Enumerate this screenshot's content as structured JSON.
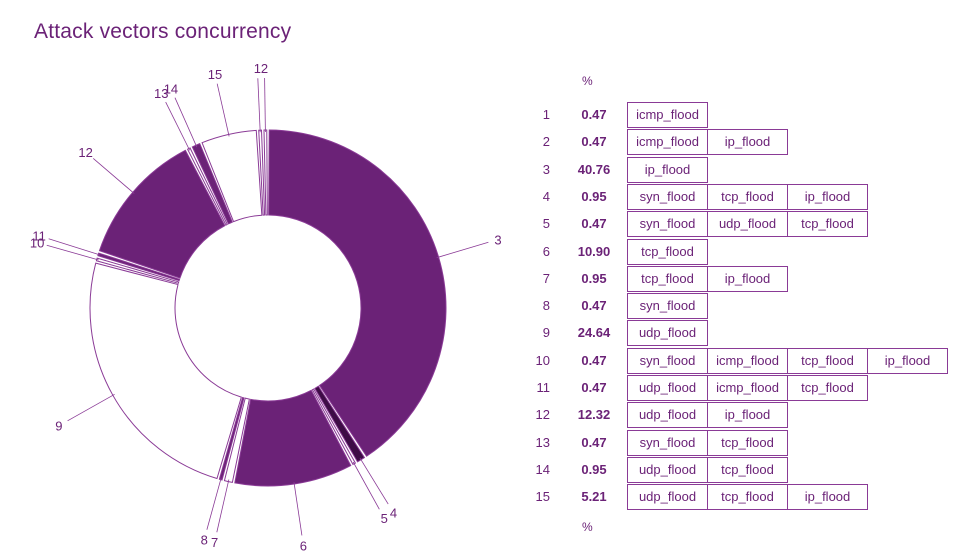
{
  "title": "Attack vectors concurrency",
  "pct_header": "%",
  "pct_footer": "%",
  "colors": {
    "accent": "#6b2277",
    "dark": "#3d0c45",
    "outline": "#8a3a96"
  },
  "chart_data": {
    "type": "pie",
    "title": "Attack vectors concurrency",
    "labels": [
      "1",
      "2",
      "3",
      "4",
      "5",
      "6",
      "7",
      "8",
      "9",
      "10",
      "11",
      "12",
      "13",
      "14",
      "15"
    ],
    "values": [
      0.47,
      0.47,
      40.76,
      0.95,
      0.47,
      10.9,
      0.95,
      0.47,
      24.64,
      0.47,
      0.47,
      12.32,
      0.47,
      0.95,
      5.21
    ],
    "value_labels": [
      "0.47",
      "0.47",
      "40.76",
      "0.95",
      "0.47",
      "10.90",
      "0.95",
      "0.47",
      "24.64",
      "0.47",
      "0.47",
      "12.32",
      "0.47",
      "0.95",
      "5.21"
    ],
    "fills": [
      "outline",
      "outline",
      "filled",
      "dark",
      "outline",
      "filled",
      "outline",
      "filled",
      "outline",
      "outline",
      "filled",
      "filled",
      "outline",
      "filled",
      "outline"
    ],
    "vectors": [
      [
        "icmp_flood"
      ],
      [
        "icmp_flood",
        "ip_flood"
      ],
      [
        "ip_flood"
      ],
      [
        "syn_flood",
        "tcp_flood",
        "ip_flood"
      ],
      [
        "syn_flood",
        "udp_flood",
        "tcp_flood"
      ],
      [
        "tcp_flood"
      ],
      [
        "tcp_flood",
        "ip_flood"
      ],
      [
        "syn_flood"
      ],
      [
        "udp_flood"
      ],
      [
        "syn_flood",
        "icmp_flood",
        "tcp_flood",
        "ip_flood"
      ],
      [
        "udp_flood",
        "icmp_flood",
        "tcp_flood"
      ],
      [
        "udp_flood",
        "ip_flood"
      ],
      [
        "syn_flood",
        "tcp_flood"
      ],
      [
        "udp_flood",
        "tcp_flood"
      ],
      [
        "udp_flood",
        "tcp_flood",
        "ip_flood"
      ]
    ]
  }
}
